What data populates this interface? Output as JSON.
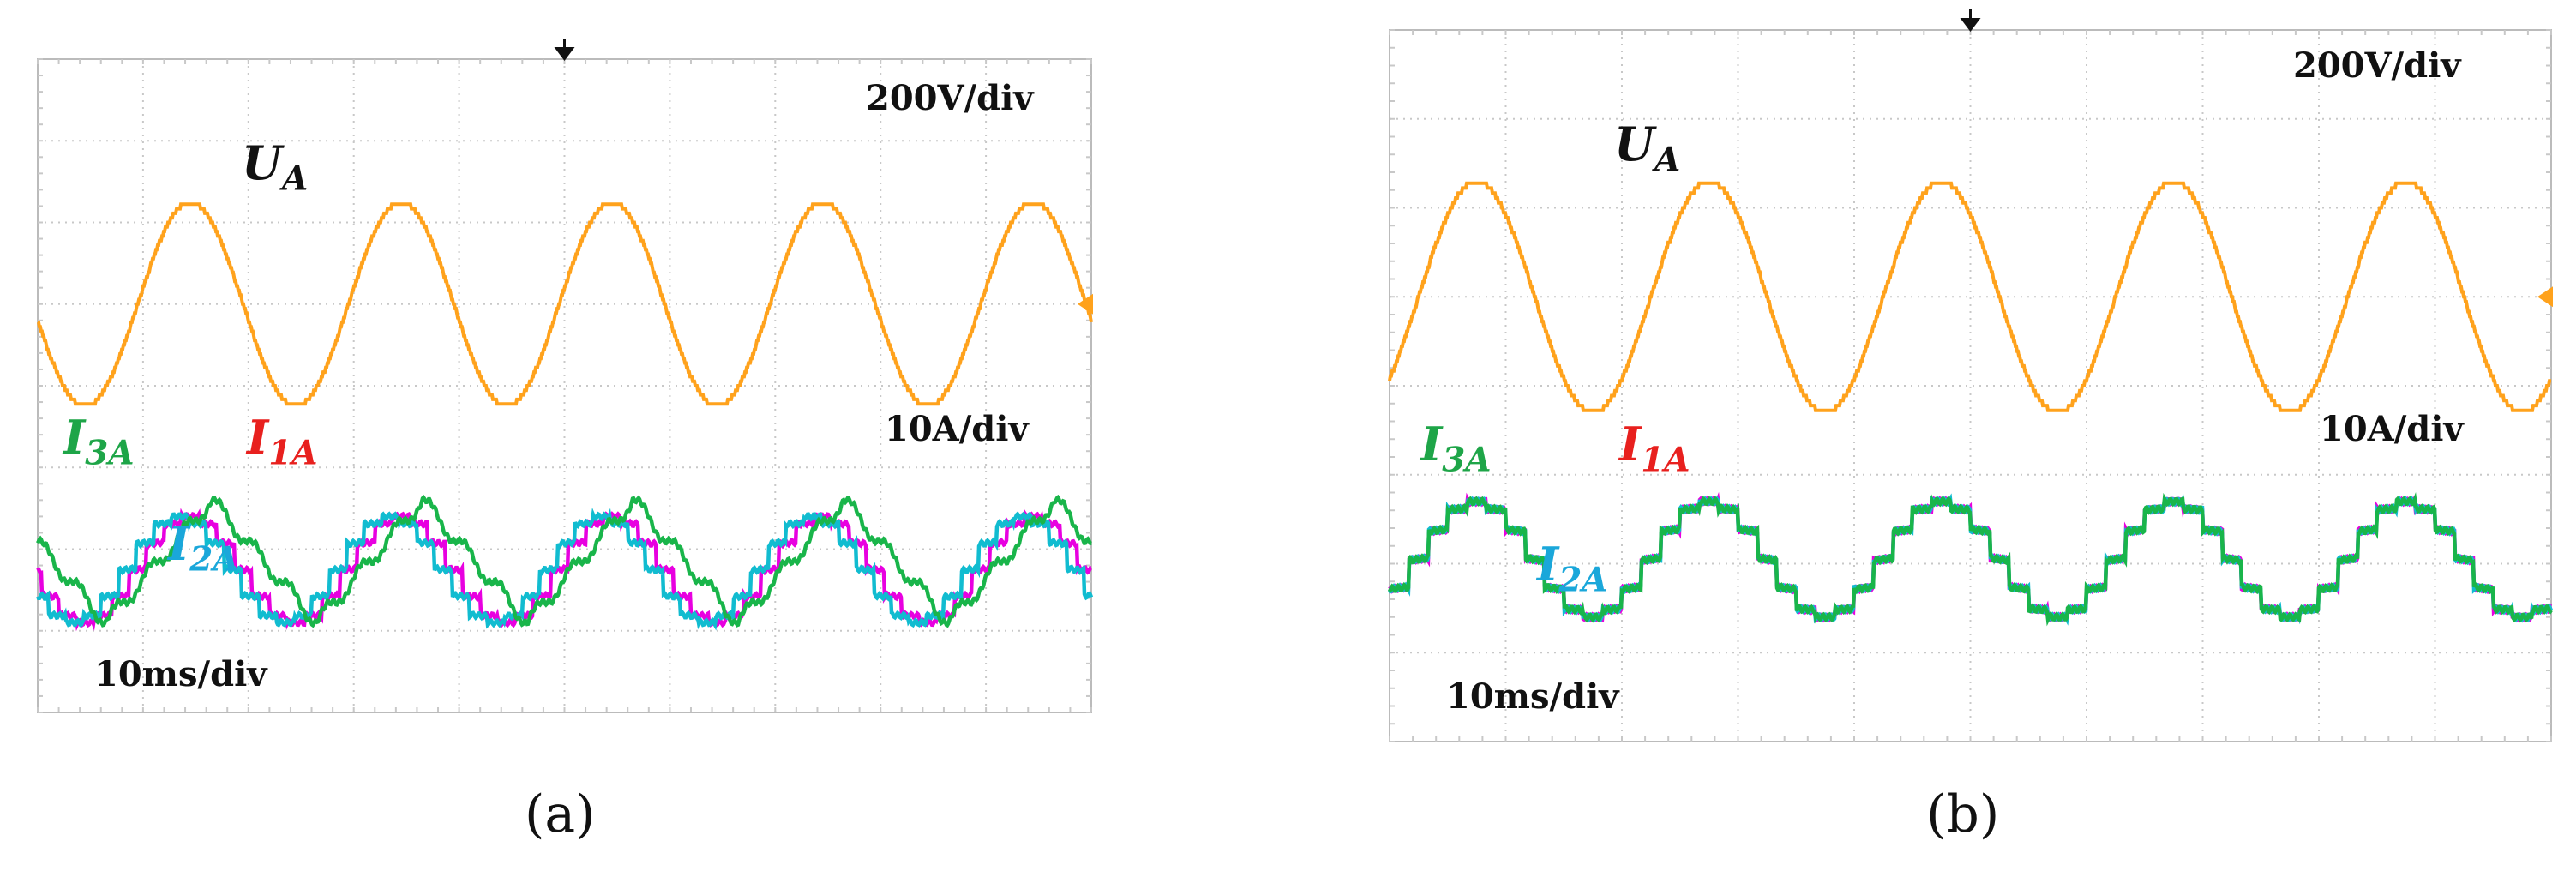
{
  "captions": [
    "(a)",
    "(b)"
  ],
  "colors": {
    "voltage": "#FFA21C",
    "i1": "#E800E0",
    "i2": "#11BCD0",
    "i3": "#19B54A",
    "label_i1": "#E8201E",
    "label_i2": "#1AA7DA",
    "label_i3": "#1EA548",
    "label_ua": "#111111",
    "grid": "#c8c8c8",
    "frame": "#bbbbbb"
  },
  "chart_data": [
    {
      "type": "line",
      "panel": "a",
      "grid": true,
      "x_divisions": 10,
      "y_divisions": 8,
      "scales": {
        "voltage": "200V/div",
        "current": "10A/div",
        "time": "10ms/div"
      },
      "x_range_ms": [
        0,
        100
      ],
      "fundamental_period_ms": 20,
      "series": [
        {
          "name": "U",
          "sub": "A",
          "kind": "voltage",
          "amplitude_div": 1.25,
          "center_div": 5.0,
          "peak_at_ms": [
            14.5,
            34.5,
            54.5,
            74.5,
            94.5
          ]
        },
        {
          "name": "I",
          "sub": "1A",
          "kind": "current",
          "amplitude_div": 0.65,
          "center_div": 1.75,
          "waveform": "stepped-sine",
          "phase_ms": 14.5
        },
        {
          "name": "I",
          "sub": "2A",
          "kind": "current",
          "amplitude_div": 0.65,
          "center_div": 1.75,
          "waveform": "stepped-sine",
          "phase_ms": 13.5
        },
        {
          "name": "I",
          "sub": "3A",
          "kind": "current",
          "amplitude_div": 0.75,
          "center_div": 1.85,
          "waveform": "distorted-triangle",
          "phase_ms": 11.5
        }
      ],
      "text_labels": {
        "voltage": "U",
        "voltage_sub": "A",
        "i1": "I",
        "i1_sub": "1A",
        "i2": "I",
        "i2_sub": "2A",
        "i3": "I",
        "i3_sub": "3A"
      }
    },
    {
      "type": "line",
      "panel": "b",
      "grid": true,
      "x_divisions": 10,
      "y_divisions": 8,
      "scales": {
        "voltage": "200V/div",
        "current": "10A/div",
        "time": "10ms/div"
      },
      "x_range_ms": [
        0,
        100
      ],
      "fundamental_period_ms": 20,
      "series": [
        {
          "name": "U",
          "sub": "A",
          "kind": "voltage",
          "amplitude_div": 1.3,
          "center_div": 5.0,
          "peak_at_ms": [
            7.5,
            27.5,
            47.5,
            67.5,
            87.5
          ]
        },
        {
          "name": "I",
          "sub": "1A",
          "kind": "current",
          "amplitude_div": 0.65,
          "center_div": 2.05,
          "waveform": "stepped-sine",
          "phase_ms": 7.5
        },
        {
          "name": "I",
          "sub": "2A",
          "kind": "current",
          "amplitude_div": 0.65,
          "center_div": 2.05,
          "waveform": "stepped-sine",
          "phase_ms": 7.5
        },
        {
          "name": "I",
          "sub": "3A",
          "kind": "current",
          "amplitude_div": 0.65,
          "center_div": 2.05,
          "waveform": "stepped-sine",
          "phase_ms": 7.5
        }
      ],
      "text_labels": {
        "voltage": "U",
        "voltage_sub": "A",
        "i1": "I",
        "i1_sub": "1A",
        "i2": "I",
        "i2_sub": "2A",
        "i3": "I",
        "i3_sub": "3A"
      }
    }
  ]
}
